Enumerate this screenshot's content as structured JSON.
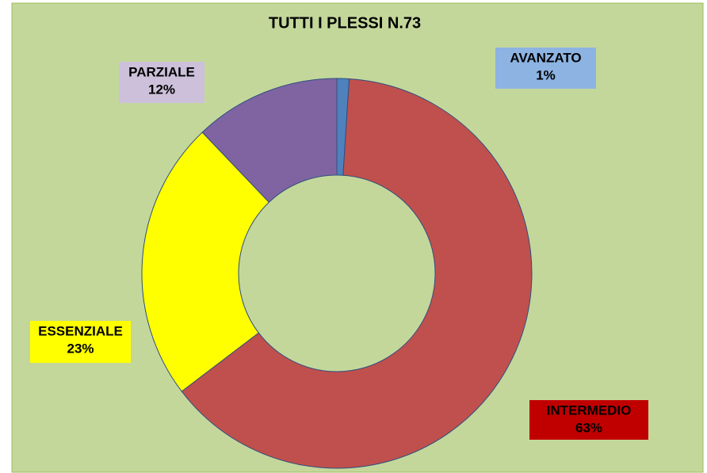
{
  "chart_data": {
    "type": "donut",
    "title": "TUTTI I PLESSI N.73",
    "categories": [
      "AVANZATO",
      "INTERMEDIO",
      "ESSENZIALE",
      "PARZIALE"
    ],
    "values": [
      1,
      63,
      23,
      12
    ],
    "value_labels": [
      "1%",
      "63%",
      "23%",
      "12%"
    ],
    "colors": [
      "#4f81bd",
      "#c0504d",
      "#ffff00",
      "#8064a2"
    ],
    "label_colors": [
      "#8db3e2",
      "#c00000",
      "#ffff00",
      "#ccc0da"
    ]
  }
}
